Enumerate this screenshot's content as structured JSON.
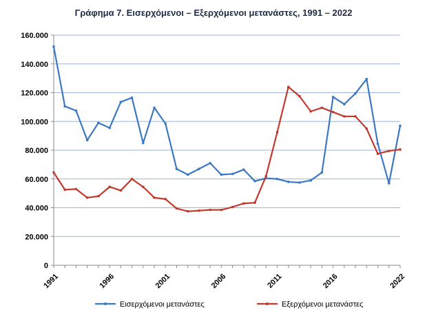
{
  "chart_data": {
    "type": "line",
    "title": "Γράφημα 7. Εισερχόμενοι – Εξερχόμενοι μετανάστες, 1991 – 2022",
    "xlabel": "",
    "ylabel": "",
    "ylim": [
      0,
      160000
    ],
    "yticks": [
      0,
      20000,
      40000,
      60000,
      80000,
      100000,
      120000,
      140000,
      160000
    ],
    "ytick_labels": [
      "0",
      "20.000",
      "40.000",
      "60.000",
      "80.000",
      "100.000",
      "120.000",
      "140.000",
      "160.000"
    ],
    "xticks": [
      1991,
      1996,
      2001,
      2006,
      2011,
      2016,
      2022
    ],
    "xtick_labels": [
      "1991",
      "1996",
      "2001",
      "2006",
      "2011",
      "2016",
      "2022"
    ],
    "x": [
      1991,
      1992,
      1993,
      1994,
      1995,
      1996,
      1997,
      1998,
      1999,
      2000,
      2001,
      2002,
      2003,
      2004,
      2005,
      2006,
      2007,
      2008,
      2009,
      2010,
      2011,
      2012,
      2013,
      2014,
      2015,
      2016,
      2017,
      2018,
      2019,
      2020,
      2021,
      2022
    ],
    "grid": true,
    "legend_position": "bottom",
    "series": [
      {
        "name": "Εισερχόμενοι μετανάστες",
        "color": "#3b78c2",
        "values": [
          152000,
          110500,
          107500,
          87000,
          99000,
          95500,
          113500,
          116500,
          85000,
          109500,
          98500,
          67000,
          63000,
          67000,
          71000,
          63000,
          63500,
          66500,
          58500,
          60500,
          60000,
          58000,
          57500,
          59000,
          64500,
          117000,
          112000,
          119500,
          129500,
          84500,
          57000,
          97000
        ]
      },
      {
        "name": "Εξερχόμενοι μετανάστες",
        "color": "#c0392b",
        "values": [
          64500,
          52500,
          53000,
          47000,
          48000,
          54500,
          52000,
          60000,
          54500,
          47000,
          46000,
          39500,
          37500,
          38000,
          38500,
          38500,
          40500,
          43000,
          43500,
          62000,
          92500,
          124000,
          117500,
          107000,
          109500,
          106500,
          103500,
          103500,
          95000,
          77500,
          79500,
          80500
        ]
      }
    ]
  }
}
